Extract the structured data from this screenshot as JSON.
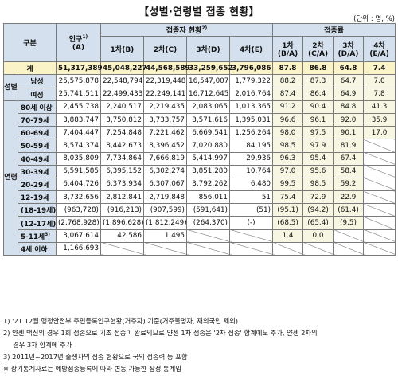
{
  "title": "【성별·연령별 접종 현황】",
  "unit": "(단위 : 명, %)",
  "headers": {
    "category": "구분",
    "population": "인구",
    "population_note": "1)",
    "population_sub": "(A)",
    "vaccinated_group": "접종자 현황",
    "vaccinated_group_note": "2)",
    "rate_group": "접종률",
    "dose1": "1차(B)",
    "dose2": "2차(C)",
    "dose3": "3차(D)",
    "dose4": "4차(E)",
    "rate1": "1차",
    "rate1_sub": "(B/A)",
    "rate2": "2차",
    "rate2_sub": "(C/A)",
    "rate3": "3차",
    "rate3_sub": "(D/A)",
    "rate4": "4차",
    "rate4_sub": "(E/A)"
  },
  "groups": {
    "sex": "성별",
    "age": "연령"
  },
  "rows": [
    {
      "label": "계",
      "pop": "51,317,389",
      "d1": "45,048,227",
      "d2": "44,568,589",
      "d3": "33,259,652",
      "d4": "3,796,086",
      "r1": "87.8",
      "r2": "86.8",
      "r3": "64.8",
      "r4": "7.4"
    },
    {
      "label": "남성",
      "pop": "25,575,878",
      "d1": "22,548,794",
      "d2": "22,319,448",
      "d3": "16,547,007",
      "d4": "1,779,322",
      "r1": "88.2",
      "r2": "87.3",
      "r3": "64.7",
      "r4": "7.0"
    },
    {
      "label": "여성",
      "pop": "25,741,511",
      "d1": "22,499,433",
      "d2": "22,249,141",
      "d3": "16,712,645",
      "d4": "2,016,764",
      "r1": "87.4",
      "r2": "86.4",
      "r3": "64.9",
      "r4": "7.8"
    },
    {
      "label": "80세 이상",
      "pop": "2,455,738",
      "d1": "2,240,517",
      "d2": "2,219,435",
      "d3": "2,083,065",
      "d4": "1,013,365",
      "r1": "91.2",
      "r2": "90.4",
      "r3": "84.8",
      "r4": "41.3"
    },
    {
      "label": "70-79세",
      "pop": "3,883,747",
      "d1": "3,750,812",
      "d2": "3,733,757",
      "d3": "3,571,616",
      "d4": "1,395,031",
      "r1": "96.6",
      "r2": "96.1",
      "r3": "92.0",
      "r4": "35.9"
    },
    {
      "label": "60-69세",
      "pop": "7,404,447",
      "d1": "7,254,848",
      "d2": "7,221,462",
      "d3": "6,669,541",
      "d4": "1,256,264",
      "r1": "98.0",
      "r2": "97.5",
      "r3": "90.1",
      "r4": "17.0"
    },
    {
      "label": "50-59세",
      "pop": "8,574,374",
      "d1": "8,442,673",
      "d2": "8,396,452",
      "d3": "7,020,880",
      "d4": "84,195",
      "r1": "98.5",
      "r2": "97.9",
      "r3": "81.9",
      "r4": ""
    },
    {
      "label": "40-49세",
      "pop": "8,035,809",
      "d1": "7,734,864",
      "d2": "7,666,819",
      "d3": "5,414,997",
      "d4": "29,936",
      "r1": "96.3",
      "r2": "95.4",
      "r3": "67.4",
      "r4": ""
    },
    {
      "label": "30-39세",
      "pop": "6,591,585",
      "d1": "6,395,152",
      "d2": "6,302,274",
      "d3": "3,851,280",
      "d4": "10,764",
      "r1": "97.0",
      "r2": "95.6",
      "r3": "58.4",
      "r4": ""
    },
    {
      "label": "20-29세",
      "pop": "6,404,726",
      "d1": "6,373,934",
      "d2": "6,307,067",
      "d3": "3,792,262",
      "d4": "6,480",
      "r1": "99.5",
      "r2": "98.5",
      "r3": "59.2",
      "r4": ""
    },
    {
      "label": "12-19세",
      "pop": "3,732,656",
      "d1": "2,812,841",
      "d2": "2,719,848",
      "d3": "856,011",
      "d4": "51",
      "r1": "75.4",
      "r2": "72.9",
      "r3": "22.9",
      "r4": ""
    },
    {
      "label": "(18-19세)",
      "pop": "(963,728)",
      "d1": "(916,213)",
      "d2": "(907,599)",
      "d3": "(591,641)",
      "d4": "(51)",
      "r1": "(95.1)",
      "r2": "(94.2)",
      "r3": "(61.4)",
      "r4": ""
    },
    {
      "label": "(12-17세)",
      "pop": "(2,768,928)",
      "d1": "(1,896,628)",
      "d2": "(1,812,249)",
      "d3": "(264,370)",
      "d4": "(-)",
      "r1": "(68.5)",
      "r2": "(65.4)",
      "r3": "(9.5)",
      "r4": ""
    },
    {
      "label": "5-11세",
      "label_note": "3)",
      "pop": "3,067,614",
      "d1": "42,586",
      "d2": "1,495",
      "d3": "",
      "d4": "",
      "r1": "1.4",
      "r2": "0.0",
      "r3": "",
      "r4": ""
    },
    {
      "label": "4세 이하",
      "pop": "1,166,693",
      "d1": "",
      "d2": "",
      "d3": "",
      "d4": "",
      "r1": "",
      "r2": "",
      "r3": "",
      "r4": ""
    }
  ],
  "notes": [
    "1) '21.12월 행정안전부 주민등록인구현황(거주자) 기준(거주불명자, 재외국민 제외)",
    "2) 얀센 백신의 경우 1회 접종으로 기초 접종이 완료되므로 얀센 1차 접종은 '2차 접종' 합계에도 추가, 얀센 2차의",
    "    경우 3차 합계에 추가",
    "3) 2011년~2017년 출생자의 접종 현황으로 국외 접종력 등 포함",
    "※ 상기통계자료는 예방접종등록에 따라 변동 가능한 잠정 통계임"
  ]
}
